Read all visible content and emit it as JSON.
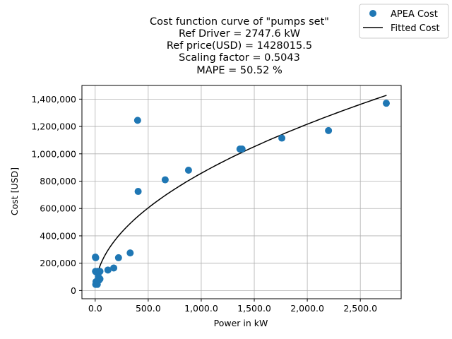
{
  "chart_data": {
    "type": "scatter",
    "title_lines": [
      "Cost function curve of \"pumps set\"",
      "Ref Driver = 2747.6 kW",
      "Ref price(USD) = 1428015.5",
      "Scaling factor = 0.5043",
      "MAPE = 50.52 %"
    ],
    "xlabel": "Power in kW",
    "ylabel": "Cost [USD]",
    "xlim": [
      -125,
      2885
    ],
    "ylim": [
      -60000,
      1500000
    ],
    "xticks": [
      0,
      500,
      1000,
      1500,
      2000,
      2500
    ],
    "xtick_labels": [
      "0.0",
      "500.0",
      "1,000.0",
      "1,500.0",
      "2,000.0",
      "2,500.0"
    ],
    "yticks": [
      0,
      200000,
      400000,
      600000,
      800000,
      1000000,
      1200000,
      1400000
    ],
    "ytick_labels": [
      "0",
      "200,000",
      "400,000",
      "600,000",
      "800,000",
      "1,000,000",
      "1,200,000",
      "1,400,000"
    ],
    "grid": true,
    "legend_position": "top-right",
    "colors": {
      "scatter": "#1f77b4",
      "fit": "#000000",
      "grid": "#b0b0b0"
    },
    "series": [
      {
        "name": "APEA Cost",
        "kind": "scatter",
        "points": [
          [
            2,
            245000
          ],
          [
            5,
            240000
          ],
          [
            3,
            140000
          ],
          [
            10,
            135000
          ],
          [
            25,
            140000
          ],
          [
            45,
            140000
          ],
          [
            8,
            65000
          ],
          [
            15,
            60000
          ],
          [
            5,
            45000
          ],
          [
            20,
            45000
          ],
          [
            35,
            75000
          ],
          [
            45,
            85000
          ],
          [
            30,
            100000
          ],
          [
            120,
            150000
          ],
          [
            175,
            165000
          ],
          [
            220,
            240000
          ],
          [
            330,
            275000
          ],
          [
            400,
            1245000
          ],
          [
            405,
            725000
          ],
          [
            660,
            810000
          ],
          [
            880,
            880000
          ],
          [
            1365,
            1035000
          ],
          [
            1385,
            1035000
          ],
          [
            1760,
            1115000
          ],
          [
            2200,
            1170000
          ],
          [
            2745,
            1370000
          ]
        ]
      },
      {
        "name": "Fitted Cost",
        "kind": "line",
        "ref_x": 2747.6,
        "ref_y": 1428015.5,
        "exponent": 0.5043,
        "x_range": [
          1,
          2747.6
        ]
      }
    ]
  }
}
